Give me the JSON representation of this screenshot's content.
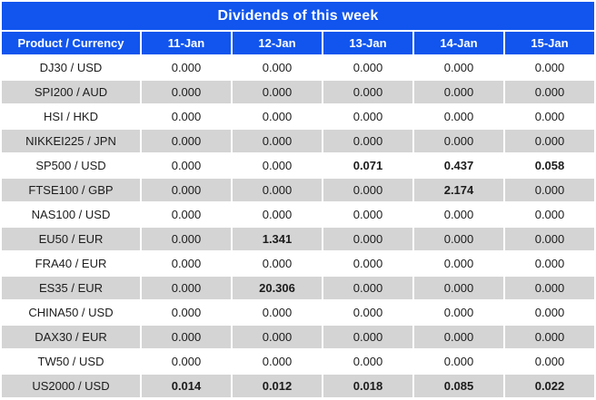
{
  "title": "Dividends of this week",
  "colors": {
    "header_bg": "#1155EE",
    "header_text": "#FFFFFF",
    "row_bg": "#FFFFFF",
    "row_alt_bg": "#D4D4D4",
    "value_text": "#1C1C1C",
    "highlight_text": "#C5122D"
  },
  "table": {
    "columns": [
      "Product / Currency",
      "11-Jan",
      "12-Jan",
      "13-Jan",
      "14-Jan",
      "15-Jan"
    ],
    "rows": [
      {
        "product": "DJ30 / USD",
        "values": [
          "0.000",
          "0.000",
          "0.000",
          "0.000",
          "0.000"
        ],
        "red": [
          false,
          false,
          false,
          false,
          false
        ]
      },
      {
        "product": "SPI200 / AUD",
        "values": [
          "0.000",
          "0.000",
          "0.000",
          "0.000",
          "0.000"
        ],
        "red": [
          false,
          false,
          false,
          false,
          false
        ]
      },
      {
        "product": "HSI / HKD",
        "values": [
          "0.000",
          "0.000",
          "0.000",
          "0.000",
          "0.000"
        ],
        "red": [
          false,
          false,
          false,
          false,
          false
        ]
      },
      {
        "product": "NIKKEI225 / JPN",
        "values": [
          "0.000",
          "0.000",
          "0.000",
          "0.000",
          "0.000"
        ],
        "red": [
          false,
          false,
          false,
          false,
          false
        ]
      },
      {
        "product": "SP500 / USD",
        "values": [
          "0.000",
          "0.000",
          "0.071",
          "0.437",
          "0.058"
        ],
        "red": [
          false,
          false,
          true,
          true,
          true
        ]
      },
      {
        "product": "FTSE100 / GBP",
        "values": [
          "0.000",
          "0.000",
          "0.000",
          "2.174",
          "0.000"
        ],
        "red": [
          false,
          false,
          false,
          true,
          false
        ]
      },
      {
        "product": "NAS100 / USD",
        "values": [
          "0.000",
          "0.000",
          "0.000",
          "0.000",
          "0.000"
        ],
        "red": [
          false,
          false,
          false,
          false,
          false
        ]
      },
      {
        "product": "EU50 / EUR",
        "values": [
          "0.000",
          "1.341",
          "0.000",
          "0.000",
          "0.000"
        ],
        "red": [
          false,
          true,
          false,
          false,
          false
        ]
      },
      {
        "product": "FRA40 / EUR",
        "values": [
          "0.000",
          "0.000",
          "0.000",
          "0.000",
          "0.000"
        ],
        "red": [
          false,
          false,
          false,
          false,
          false
        ]
      },
      {
        "product": "ES35 / EUR",
        "values": [
          "0.000",
          "20.306",
          "0.000",
          "0.000",
          "0.000"
        ],
        "red": [
          false,
          true,
          false,
          false,
          false
        ]
      },
      {
        "product": "CHINA50 / USD",
        "values": [
          "0.000",
          "0.000",
          "0.000",
          "0.000",
          "0.000"
        ],
        "red": [
          false,
          false,
          false,
          false,
          false
        ]
      },
      {
        "product": "DAX30 / EUR",
        "values": [
          "0.000",
          "0.000",
          "0.000",
          "0.000",
          "0.000"
        ],
        "red": [
          false,
          false,
          false,
          false,
          false
        ]
      },
      {
        "product": "TW50 / USD",
        "values": [
          "0.000",
          "0.000",
          "0.000",
          "0.000",
          "0.000"
        ],
        "red": [
          false,
          false,
          false,
          false,
          false
        ]
      },
      {
        "product": "US2000 / USD",
        "values": [
          "0.014",
          "0.012",
          "0.018",
          "0.085",
          "0.022"
        ],
        "red": [
          true,
          true,
          true,
          true,
          true
        ]
      }
    ]
  }
}
